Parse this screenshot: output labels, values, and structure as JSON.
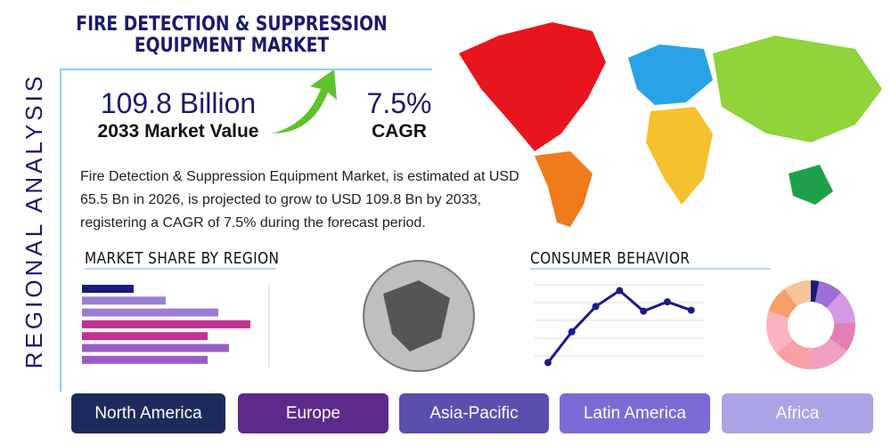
{
  "header": {
    "title": "FIRE DETECTION & SUPPRESSION EQUIPMENT MARKET",
    "side_label": "REGIONAL ANALYSIS"
  },
  "stats": [
    {
      "value": "109.8 Billion",
      "label": "2033 Market Value"
    },
    {
      "value": "7.5%",
      "label": "CAGR"
    }
  ],
  "description": "Fire Detection & Suppression Equipment Market, is estimated at USD 65.5 Bn in 2026, is projected to grow to USD 109.8 Bn by 2033, registering a CAGR of 7.5% during the forecast period.",
  "market_share": {
    "title": "MARKET SHARE BY REGION",
    "xlim": [
      0,
      210
    ],
    "values": [
      58,
      94,
      153,
      189,
      141,
      165,
      141
    ],
    "colors": [
      "#1a1a7a",
      "#9b7fd4",
      "#9b7fd4",
      "#c0338f",
      "#c0338f",
      "#9a5cc6",
      "#9a5cc6"
    ]
  },
  "consumer_behavior": {
    "title": "CONSUMER BEHAVIOR",
    "ylim": [
      0,
      100
    ],
    "values": [
      12,
      45,
      72,
      89,
      67,
      77,
      68
    ],
    "color": "#1a1a8a"
  },
  "donut": {
    "values": [
      3,
      9,
      12,
      11,
      14,
      15,
      16,
      10,
      10
    ],
    "colors": [
      "#1a1a7a",
      "#9b6fd6",
      "#d59ae6",
      "#e37fb6",
      "#ef9fc4",
      "#f7a0a8",
      "#fbb3c0",
      "#f5a06a",
      "#f7c49a"
    ]
  },
  "regions": [
    "North America",
    "Europe",
    "Asia-Pacific",
    "Latin America",
    "Africa"
  ],
  "region_colors": [
    "#1f2a5c",
    "#5b2a8a",
    "#5a4fae",
    "#7b6ad6",
    "#a9a4e6"
  ]
}
